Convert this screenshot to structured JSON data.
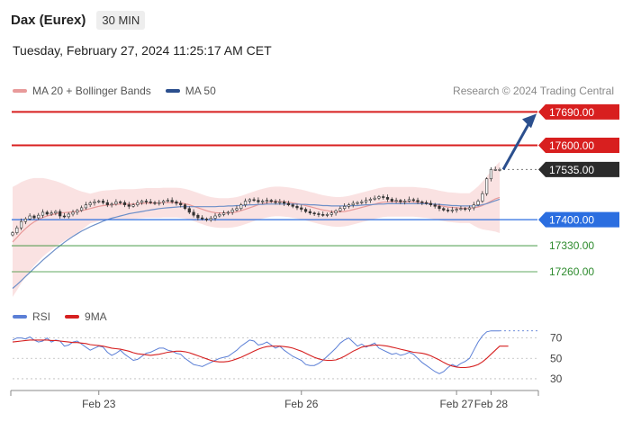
{
  "header": {
    "title": "Dax (Eurex)",
    "timeframe": "30 MIN"
  },
  "datetime": "Tuesday, February 27, 2024 11:25:17 AM CET",
  "legend": {
    "ma20_label": "MA 20 + Bollinger Bands",
    "ma50_label": "MA 50",
    "ma20_color": "#e89a9a",
    "ma50_color": "#2b4f8e"
  },
  "credit": "Research © 2024 Trading Central",
  "rsi_legend": {
    "rsi_label": "RSI",
    "ma_label": "9MA",
    "rsi_color": "#5b7fd6",
    "ma_color": "#d62020"
  },
  "chart_data": [
    {
      "type": "line",
      "panel": "price",
      "x_tick_labels": [
        "Feb 23",
        "Feb 26",
        "Feb 27",
        "Feb 28"
      ],
      "levels": [
        {
          "value": 17690.0,
          "label": "17690.00",
          "style": "resistance",
          "color": "#d81f1f"
        },
        {
          "value": 17600.0,
          "label": "17600.00",
          "style": "resistance",
          "color": "#d81f1f"
        },
        {
          "value": 17535.0,
          "label": "17535.00",
          "style": "last",
          "color": "#2b2b2b"
        },
        {
          "value": 17400.0,
          "label": "17400.00",
          "style": "pivot",
          "color": "#2b6ee0"
        },
        {
          "value": 17330.0,
          "label": "17330.00",
          "style": "support",
          "color": "#2e8b2e"
        },
        {
          "value": 17260.0,
          "label": "17260.00",
          "style": "support",
          "color": "#2e8b2e"
        }
      ],
      "ylim": [
        17180,
        17720
      ],
      "close_prices": [
        17365,
        17378,
        17395,
        17402,
        17410,
        17405,
        17412,
        17420,
        17415,
        17418,
        17422,
        17410,
        17408,
        17415,
        17420,
        17425,
        17432,
        17440,
        17445,
        17448,
        17450,
        17446,
        17440,
        17442,
        17448,
        17446,
        17440,
        17436,
        17440,
        17446,
        17450,
        17448,
        17446,
        17444,
        17446,
        17450,
        17452,
        17448,
        17444,
        17440,
        17430,
        17420,
        17412,
        17405,
        17402,
        17400,
        17404,
        17410,
        17414,
        17418,
        17420,
        17426,
        17430,
        17440,
        17450,
        17454,
        17452,
        17448,
        17450,
        17452,
        17449,
        17446,
        17448,
        17444,
        17440,
        17436,
        17432,
        17428,
        17422,
        17418,
        17416,
        17414,
        17412,
        17414,
        17418,
        17424,
        17430,
        17436,
        17440,
        17444,
        17446,
        17448,
        17452,
        17455,
        17458,
        17462,
        17460,
        17455,
        17450,
        17452,
        17448,
        17450,
        17454,
        17452,
        17448,
        17446,
        17444,
        17440,
        17436,
        17430,
        17426,
        17424,
        17426,
        17428,
        17430,
        17428,
        17432,
        17440,
        17450,
        17470,
        17510,
        17535,
        17535,
        17535
      ],
      "ma20": [
        17340,
        17352,
        17365,
        17376,
        17386,
        17394,
        17400,
        17406,
        17410,
        17413,
        17416,
        17418,
        17419,
        17420,
        17421,
        17422,
        17424,
        17427,
        17430,
        17433,
        17436,
        17438,
        17439,
        17440,
        17441,
        17442,
        17442,
        17442,
        17442,
        17443,
        17444,
        17445,
        17445,
        17445,
        17445,
        17446,
        17446,
        17446,
        17446,
        17445,
        17443,
        17440,
        17436,
        17432,
        17428,
        17424,
        17421,
        17419,
        17418,
        17418,
        17418,
        17419,
        17421,
        17424,
        17428,
        17432,
        17436,
        17440,
        17443,
        17446,
        17448,
        17449,
        17449,
        17448,
        17447,
        17445,
        17443,
        17441,
        17438,
        17435,
        17432,
        17429,
        17426,
        17424,
        17422,
        17421,
        17421,
        17422,
        17424,
        17427,
        17430,
        17433,
        17436,
        17439,
        17442,
        17445,
        17447,
        17448,
        17448,
        17448,
        17448,
        17448,
        17448,
        17448,
        17447,
        17446,
        17445,
        17443,
        17441,
        17438,
        17436,
        17434,
        17433,
        17432,
        17431,
        17431,
        17431,
        17432,
        17434,
        17438,
        17444,
        17450,
        17456,
        17460
      ],
      "ma50": [
        17215,
        17225,
        17236,
        17247,
        17258,
        17269,
        17280,
        17291,
        17301,
        17311,
        17321,
        17330,
        17339,
        17347,
        17355,
        17362,
        17369,
        17375,
        17381,
        17386,
        17391,
        17396,
        17400,
        17404,
        17407,
        17410,
        17413,
        17416,
        17418,
        17420,
        17422,
        17424,
        17426,
        17428,
        17430,
        17431,
        17432,
        17433,
        17434,
        17435,
        17435,
        17435,
        17435,
        17435,
        17435,
        17435,
        17435,
        17435,
        17436,
        17436,
        17437,
        17437,
        17438,
        17438,
        17439,
        17440,
        17440,
        17441,
        17441,
        17442,
        17442,
        17442,
        17442,
        17442,
        17442,
        17442,
        17442,
        17441,
        17441,
        17440,
        17440,
        17439,
        17438,
        17438,
        17437,
        17437,
        17437,
        17437,
        17437,
        17438,
        17438,
        17439,
        17440,
        17440,
        17441,
        17442,
        17442,
        17443,
        17443,
        17443,
        17443,
        17443,
        17443,
        17443,
        17443,
        17443,
        17443,
        17442,
        17442,
        17441,
        17440,
        17439,
        17438,
        17438,
        17437,
        17437,
        17437,
        17437,
        17438,
        17440,
        17443,
        17447,
        17451,
        17455
      ],
      "forecast_arrow": {
        "from": 17535,
        "to": 17690
      }
    },
    {
      "type": "line",
      "panel": "rsi",
      "y_tick_labels": [
        "70",
        "50",
        "30"
      ],
      "y_ticks": [
        70,
        50,
        30
      ],
      "ylim": [
        22,
        82
      ],
      "rsi": [
        68,
        70,
        70,
        69,
        71,
        68,
        66,
        67,
        70,
        66,
        68,
        67,
        62,
        63,
        66,
        67,
        64,
        61,
        58,
        60,
        62,
        61,
        56,
        53,
        55,
        58,
        54,
        51,
        48,
        49,
        52,
        55,
        56,
        58,
        60,
        60,
        58,
        57,
        55,
        54,
        50,
        47,
        44,
        43,
        42,
        44,
        46,
        48,
        50,
        51,
        52,
        55,
        58,
        62,
        65,
        68,
        67,
        63,
        64,
        66,
        63,
        60,
        62,
        58,
        55,
        52,
        50,
        48,
        44,
        43,
        43,
        45,
        48,
        52,
        56,
        60,
        65,
        68,
        70,
        66,
        62,
        64,
        61,
        63,
        65,
        60,
        58,
        56,
        54,
        55,
        53,
        54,
        56,
        54,
        50,
        46,
        43,
        40,
        37,
        35,
        37,
        41,
        44,
        42,
        45,
        47,
        50,
        58,
        66,
        72,
        76,
        77,
        77,
        77
      ],
      "rsi_9ma": [
        66,
        66.5,
        67,
        67.5,
        68,
        68,
        68,
        68,
        68,
        67.5,
        67.5,
        67,
        66.5,
        66,
        65.5,
        65.5,
        65,
        64.5,
        63.5,
        63,
        62.5,
        62,
        61,
        60,
        59.5,
        59,
        58,
        57,
        55.5,
        54.5,
        54,
        53.5,
        53,
        53.5,
        54,
        55,
        56,
        56.5,
        57,
        57,
        56.5,
        55.5,
        54,
        52.5,
        51,
        49.5,
        48,
        47,
        46.5,
        46.5,
        47,
        48,
        49.5,
        51,
        53,
        55,
        57,
        59,
        60.5,
        61.5,
        62,
        62,
        62,
        61.5,
        61,
        60,
        58.5,
        57,
        55,
        53,
        51,
        49.5,
        48.5,
        48,
        48,
        48.5,
        50,
        52,
        54.5,
        57,
        59,
        61,
        62,
        62.5,
        63,
        63,
        62.5,
        62,
        61,
        60,
        59,
        58,
        57,
        56,
        55.5,
        55,
        54,
        52.5,
        50.5,
        48.5,
        46,
        44,
        42.5,
        41.5,
        41,
        41,
        41.5,
        42.5,
        44,
        46.5,
        50,
        54,
        58,
        62,
        62,
        62
      ]
    }
  ]
}
